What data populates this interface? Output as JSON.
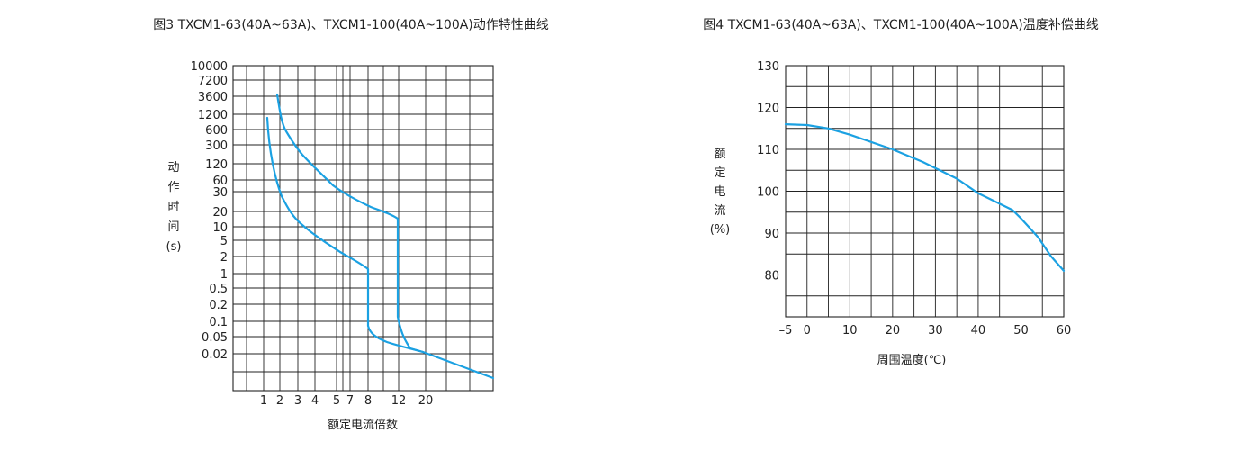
{
  "chart_data": [
    {
      "type": "line",
      "title": "图3 TXCM1-63(40A~63A)、TXCM1-100(40A~100A)动作特性曲线",
      "xlabel": "额定电流倍数",
      "ylabel": "动作时间(s)",
      "ylabel_chars": [
        "动",
        "作",
        "时",
        "间",
        "(s)"
      ],
      "x_ticks": [
        "1",
        "2",
        "3",
        "4",
        "5",
        "7",
        "8",
        "12",
        "20"
      ],
      "y_ticks": [
        "10000",
        "7200",
        "3600",
        "1200",
        "600",
        "300",
        "120",
        "60",
        "30",
        "20",
        "10",
        "5",
        "2",
        "1",
        "0.5",
        "0.2",
        "0.1",
        "0.05",
        "0.02"
      ],
      "grid": true,
      "colors": {
        "curve": "#1ba1e2"
      },
      "series": [
        {
          "x": [
            "1",
            "1.2",
            "1.5",
            "2",
            "3",
            "4",
            "5",
            "7",
            "8",
            "8",
            "8.2",
            "10",
            "12",
            "20"
          ],
          "y": [
            "1200",
            "150",
            "45",
            "15",
            "5",
            "3",
            "2",
            "1.6",
            "1.4",
            "0.1",
            "0.07",
            "0.04",
            "0.03",
            "0.02"
          ]
        },
        {
          "x": [
            "1.7",
            "2",
            "3",
            "4",
            "5",
            "6",
            "7",
            "10",
            "12",
            "12",
            "12.5",
            "14",
            "20"
          ],
          "y": [
            "3600",
            "600",
            "150",
            "60",
            "30",
            "25",
            "20",
            "18",
            "16",
            "0.1",
            "0.06",
            "0.025",
            "0.02"
          ]
        }
      ]
    },
    {
      "type": "line",
      "title": "图4 TXCM1-63(40A~63A)、TXCM1-100(40A~100A)温度补偿曲线",
      "xlabel": "周围温度(℃)",
      "ylabel": "额定电流(%)",
      "ylabel_chars": [
        "额",
        "定",
        "电",
        "流",
        "(%)"
      ],
      "x_ticks": [
        "–5",
        "0",
        "10",
        "20",
        "30",
        "40",
        "50",
        "60"
      ],
      "y_ticks": [
        "130",
        "120",
        "110",
        "100",
        "90",
        "80"
      ],
      "xlim": [
        -5,
        60
      ],
      "ylim": [
        70,
        130
      ],
      "grid": true,
      "colors": {
        "curve": "#1ba1e2"
      },
      "series": [
        {
          "x": [
            -5,
            0,
            5,
            10,
            20,
            27,
            35,
            40,
            45,
            48,
            50,
            54,
            57,
            60
          ],
          "y": [
            116,
            115.8,
            115,
            113.5,
            110,
            107,
            103,
            99.5,
            97,
            95.5,
            93.5,
            89,
            84.5,
            81
          ]
        }
      ]
    }
  ]
}
